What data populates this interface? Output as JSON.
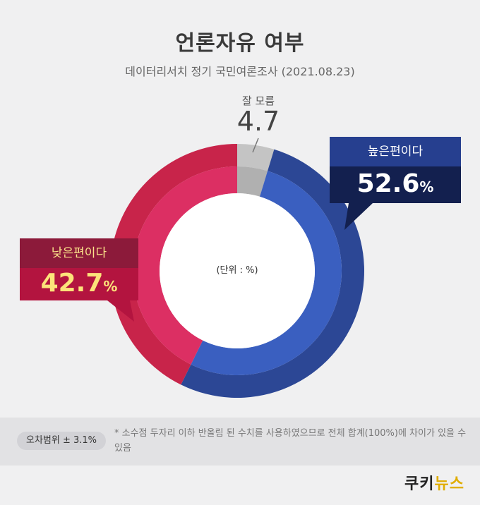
{
  "header": {
    "title": "언론자유 여부",
    "subtitle": "데이터리서치 정기 국민여론조사 (2021.08.23)"
  },
  "chart_data": {
    "type": "pie",
    "categories": [
      "잘 모름",
      "높은편이다",
      "낮은편이다"
    ],
    "values": [
      4.7,
      52.6,
      42.7
    ],
    "value_labels": [
      "4.7",
      "52.6",
      "42.7"
    ],
    "unit_symbol": "%",
    "center_note": "(단위 : %)",
    "colors": {
      "outer": [
        "#c4c4c4",
        "#2c4795",
        "#c8244a"
      ],
      "inner": [
        "#b0b0b0",
        "#3a5fc0",
        "#dc2f63"
      ]
    }
  },
  "callouts": {
    "dont_know": {
      "label": "잘 모름",
      "value": "4.7"
    },
    "high": {
      "label": "높은편이다",
      "value": "52.6",
      "unit": "%",
      "label_bg": "#263f8f",
      "value_bg": "#13204f"
    },
    "low": {
      "label": "낮은편이다",
      "value": "42.7",
      "unit": "%",
      "label_bg": "#8c1a3a",
      "value_bg": "#b3143f"
    }
  },
  "footer": {
    "margin_of_error": "오차범위 ± 3.1%",
    "note": "* 소수점 두자리 이하 반올림 된 수치를 사용하였으므로 전체 합계(100%)에 차이가 있을 수 있음"
  },
  "logo": {
    "part1": "쿠키",
    "part2": "뉴스"
  }
}
